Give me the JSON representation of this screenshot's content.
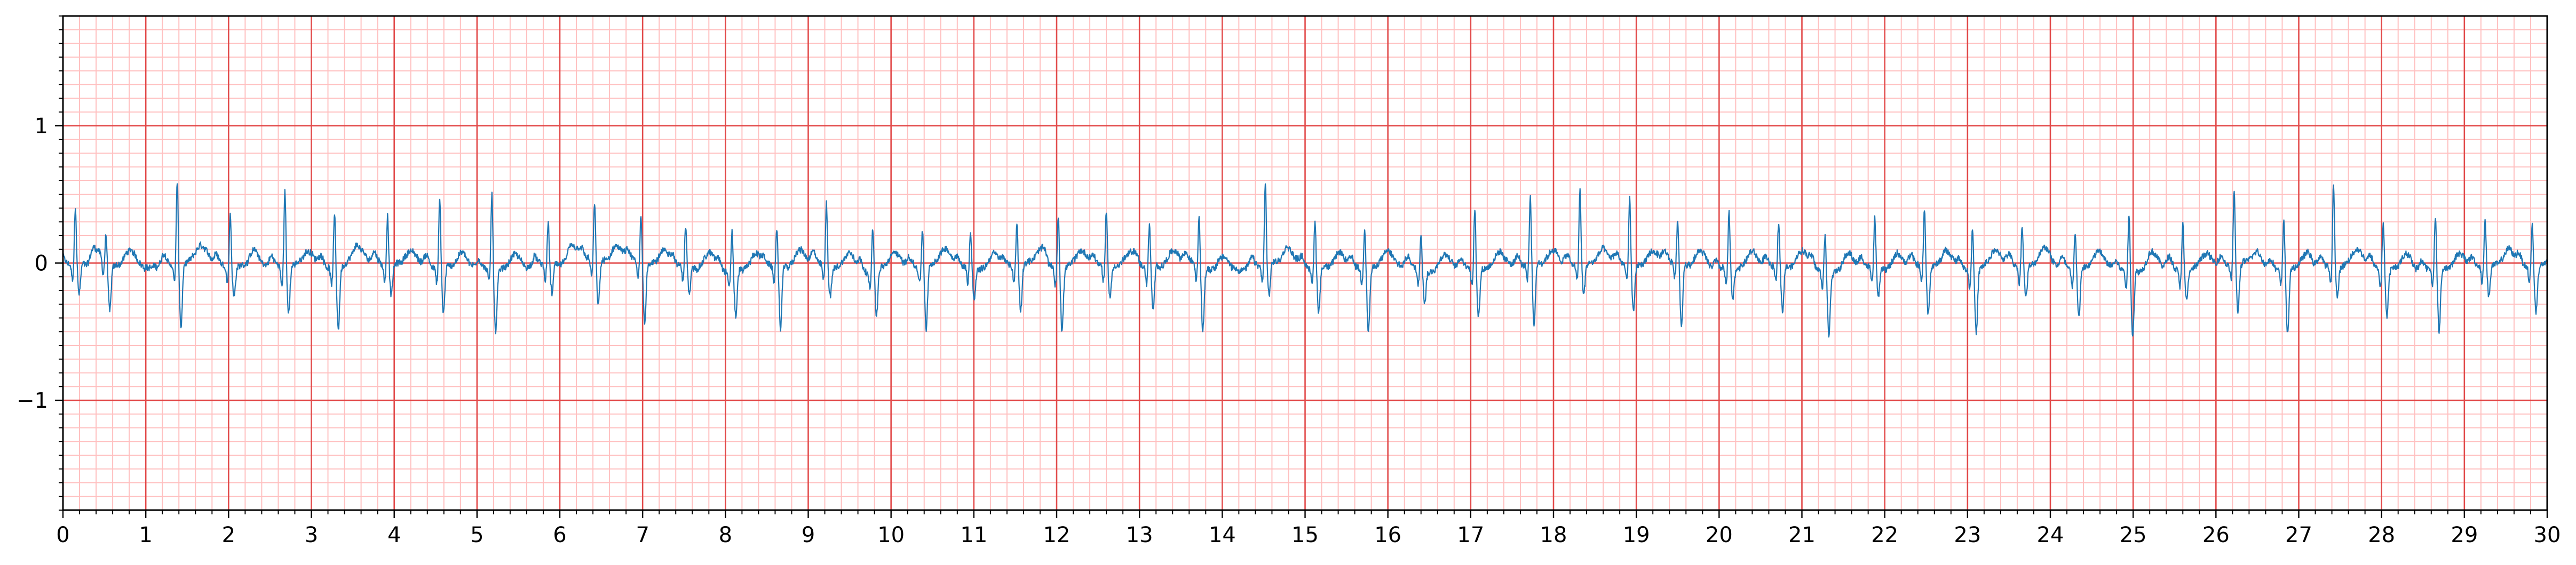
{
  "chart_data": {
    "type": "line",
    "title": "",
    "xlabel": "",
    "ylabel": "",
    "xlim": [
      0,
      30
    ],
    "ylim": [
      -1.8,
      1.8
    ],
    "x_major_ticks": [
      0,
      1,
      2,
      3,
      4,
      5,
      6,
      7,
      8,
      9,
      10,
      11,
      12,
      13,
      14,
      15,
      16,
      17,
      18,
      19,
      20,
      21,
      22,
      23,
      24,
      25,
      26,
      27,
      28,
      29,
      30
    ],
    "x_tick_labels": [
      "0",
      "1",
      "2",
      "3",
      "4",
      "5",
      "6",
      "7",
      "8",
      "9",
      "10",
      "11",
      "12",
      "13",
      "14",
      "15",
      "16",
      "17",
      "18",
      "19",
      "20",
      "21",
      "22",
      "23",
      "24",
      "25",
      "26",
      "27",
      "28",
      "29",
      "30"
    ],
    "y_major_ticks": [
      -1,
      0,
      1
    ],
    "y_tick_labels": [
      "−1",
      "0",
      "1"
    ],
    "x_minor_step": 0.2,
    "y_minor_step": 0.1,
    "grid": {
      "major": true,
      "minor": true,
      "major_color": "#e24a4a",
      "minor_color": "#ffc0c0"
    },
    "line_color": "#1f77b4",
    "beats": [
      0.15,
      0.52,
      1.38,
      2.02,
      2.68,
      3.28,
      3.92,
      4.55,
      5.18,
      5.86,
      6.42,
      6.98,
      7.52,
      8.08,
      8.62,
      9.22,
      9.78,
      10.38,
      10.96,
      11.52,
      12.02,
      12.6,
      13.12,
      13.72,
      14.52,
      15.12,
      15.72,
      16.4,
      17.05,
      17.72,
      18.32,
      18.92,
      19.5,
      20.12,
      20.72,
      21.28,
      21.88,
      22.48,
      23.06,
      23.66,
      24.3,
      24.95,
      25.6,
      26.22,
      26.82,
      27.42,
      28.02,
      28.65,
      29.25,
      29.82
    ],
    "beat_peaks": [
      0.42,
      0.2,
      0.62,
      0.4,
      0.58,
      0.38,
      0.36,
      0.5,
      0.55,
      0.3,
      0.42,
      0.32,
      0.28,
      0.3,
      0.3,
      0.45,
      0.32,
      0.28,
      0.25,
      0.3,
      0.4,
      0.38,
      0.3,
      0.36,
      0.62,
      0.32,
      0.3,
      0.28,
      0.45,
      0.48,
      0.55,
      0.5,
      0.32,
      0.4,
      0.32,
      0.28,
      0.38,
      0.42,
      0.3,
      0.3,
      0.28,
      0.42,
      0.35,
      0.55,
      0.38,
      0.62,
      0.35,
      0.4,
      0.36,
      0.3
    ]
  }
}
